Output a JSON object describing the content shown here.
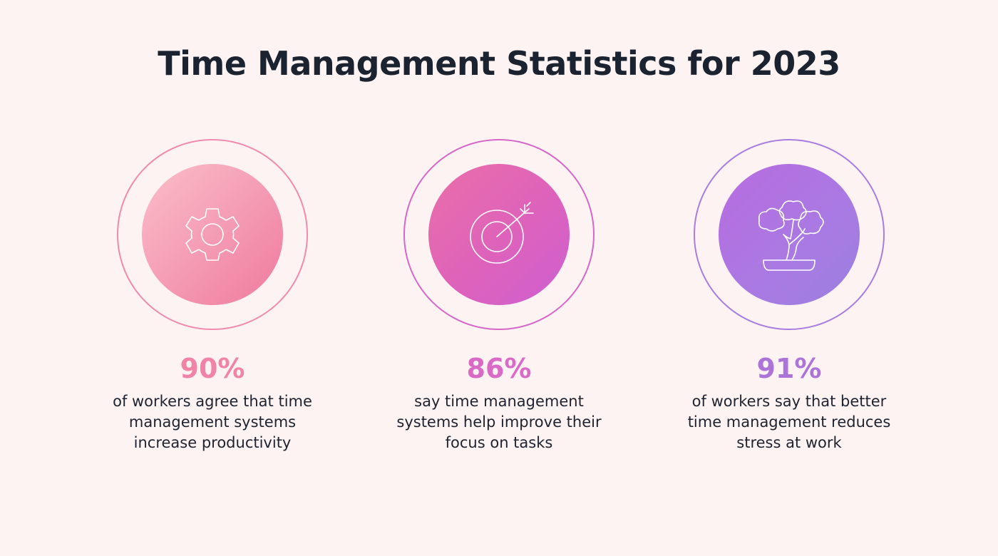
{
  "title": "Time Management Statistics for 2023",
  "stats": [
    {
      "value": "90%",
      "description": "of workers agree that time management systems increase productivity",
      "icon": "gear-icon",
      "accent": "#f283a8"
    },
    {
      "value": "86%",
      "description": "say time management systems help improve their focus on tasks",
      "icon": "target-icon",
      "accent": "#d96ac6"
    },
    {
      "value": "91%",
      "description": "of workers say that better time management reduces stress at work",
      "icon": "bonsai-tree-icon",
      "accent": "#ad74d8"
    }
  ]
}
